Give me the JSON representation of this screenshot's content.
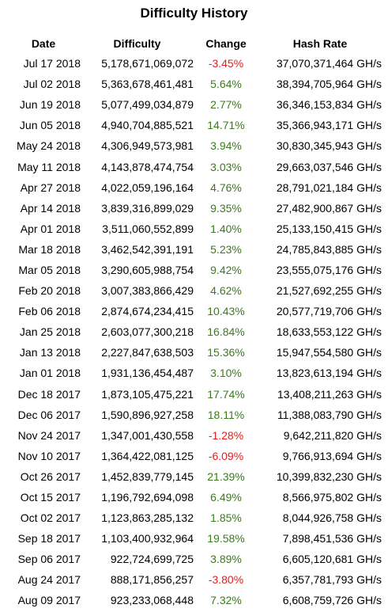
{
  "page": {
    "title": "Difficulty History"
  },
  "table": {
    "columns": [
      "Date",
      "Difficulty",
      "Change",
      "Hash Rate"
    ],
    "colors": {
      "positive": "#3c7a1e",
      "negative": "#e02020"
    },
    "rows": [
      {
        "date": "Jul 17 2018",
        "difficulty": "5,178,671,069,072",
        "change": "-3.45%",
        "hash_rate": "37,070,371,464 GH/s"
      },
      {
        "date": "Jul 02 2018",
        "difficulty": "5,363,678,461,481",
        "change": "5.64%",
        "hash_rate": "38,394,705,964 GH/s"
      },
      {
        "date": "Jun 19 2018",
        "difficulty": "5,077,499,034,879",
        "change": "2.77%",
        "hash_rate": "36,346,153,834 GH/s"
      },
      {
        "date": "Jun 05 2018",
        "difficulty": "4,940,704,885,521",
        "change": "14.71%",
        "hash_rate": "35,366,943,171 GH/s"
      },
      {
        "date": "May 24 2018",
        "difficulty": "4,306,949,573,981",
        "change": "3.94%",
        "hash_rate": "30,830,345,943 GH/s"
      },
      {
        "date": "May 11 2018",
        "difficulty": "4,143,878,474,754",
        "change": "3.03%",
        "hash_rate": "29,663,037,546 GH/s"
      },
      {
        "date": "Apr 27 2018",
        "difficulty": "4,022,059,196,164",
        "change": "4.76%",
        "hash_rate": "28,791,021,184 GH/s"
      },
      {
        "date": "Apr 14 2018",
        "difficulty": "3,839,316,899,029",
        "change": "9.35%",
        "hash_rate": "27,482,900,867 GH/s"
      },
      {
        "date": "Apr 01 2018",
        "difficulty": "3,511,060,552,899",
        "change": "1.40%",
        "hash_rate": "25,133,150,415 GH/s"
      },
      {
        "date": "Mar 18 2018",
        "difficulty": "3,462,542,391,191",
        "change": "5.23%",
        "hash_rate": "24,785,843,885 GH/s"
      },
      {
        "date": "Mar 05 2018",
        "difficulty": "3,290,605,988,754",
        "change": "9.42%",
        "hash_rate": "23,555,075,176 GH/s"
      },
      {
        "date": "Feb 20 2018",
        "difficulty": "3,007,383,866,429",
        "change": "4.62%",
        "hash_rate": "21,527,692,255 GH/s"
      },
      {
        "date": "Feb 06 2018",
        "difficulty": "2,874,674,234,415",
        "change": "10.43%",
        "hash_rate": "20,577,719,706 GH/s"
      },
      {
        "date": "Jan 25 2018",
        "difficulty": "2,603,077,300,218",
        "change": "16.84%",
        "hash_rate": "18,633,553,122 GH/s"
      },
      {
        "date": "Jan 13 2018",
        "difficulty": "2,227,847,638,503",
        "change": "15.36%",
        "hash_rate": "15,947,554,580 GH/s"
      },
      {
        "date": "Jan 01 2018",
        "difficulty": "1,931,136,454,487",
        "change": "3.10%",
        "hash_rate": "13,823,613,194 GH/s"
      },
      {
        "date": "Dec 18 2017",
        "difficulty": "1,873,105,475,221",
        "change": "17.74%",
        "hash_rate": "13,408,211,263 GH/s"
      },
      {
        "date": "Dec 06 2017",
        "difficulty": "1,590,896,927,258",
        "change": "18.11%",
        "hash_rate": "11,388,083,790 GH/s"
      },
      {
        "date": "Nov 24 2017",
        "difficulty": "1,347,001,430,558",
        "change": "-1.28%",
        "hash_rate": "9,642,211,820 GH/s"
      },
      {
        "date": "Nov 10 2017",
        "difficulty": "1,364,422,081,125",
        "change": "-6.09%",
        "hash_rate": "9,766,913,694 GH/s"
      },
      {
        "date": "Oct 26 2017",
        "difficulty": "1,452,839,779,145",
        "change": "21.39%",
        "hash_rate": "10,399,832,230 GH/s"
      },
      {
        "date": "Oct 15 2017",
        "difficulty": "1,196,792,694,098",
        "change": "6.49%",
        "hash_rate": "8,566,975,802 GH/s"
      },
      {
        "date": "Oct 02 2017",
        "difficulty": "1,123,863,285,132",
        "change": "1.85%",
        "hash_rate": "8,044,926,758 GH/s"
      },
      {
        "date": "Sep 18 2017",
        "difficulty": "1,103,400,932,964",
        "change": "19.58%",
        "hash_rate": "7,898,451,536 GH/s"
      },
      {
        "date": "Sep 06 2017",
        "difficulty": "922,724,699,725",
        "change": "3.89%",
        "hash_rate": "6,605,120,681 GH/s"
      },
      {
        "date": "Aug 24 2017",
        "difficulty": "888,171,856,257",
        "change": "-3.80%",
        "hash_rate": "6,357,781,793 GH/s"
      },
      {
        "date": "Aug 09 2017",
        "difficulty": "923,233,068,448",
        "change": "7.32%",
        "hash_rate": "6,608,759,726 GH/s"
      }
    ]
  }
}
